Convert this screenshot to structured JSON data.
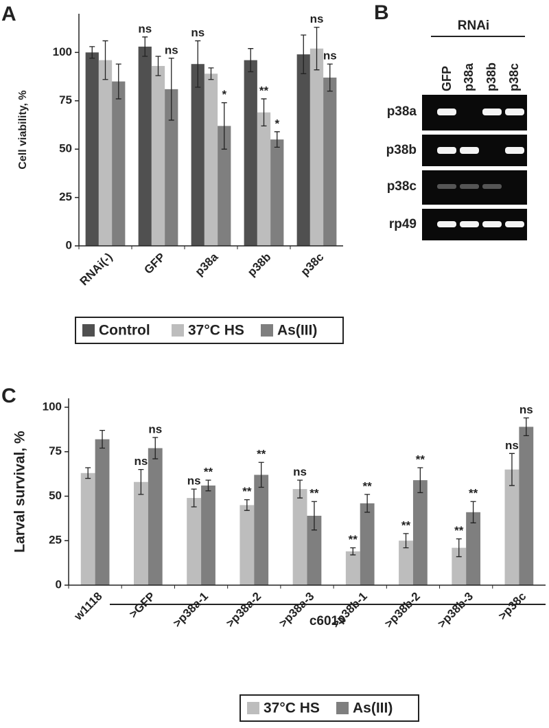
{
  "chart_data": [
    {
      "type": "bar",
      "panel_label": "A",
      "y_label": "Cell viability, %",
      "categories": [
        "RNAi(-)",
        "GFP",
        "p38a",
        "p38b",
        "p38c"
      ],
      "series": [
        {
          "name": "Control",
          "color": "#505050",
          "values": [
            100,
            103,
            94,
            96,
            99
          ],
          "errors": [
            3,
            5,
            12,
            6,
            10
          ],
          "annotations": [
            null,
            "ns",
            "ns",
            null,
            null
          ]
        },
        {
          "name": "37°C HS",
          "color": "#bdbdbd",
          "values": [
            96,
            93,
            89,
            69,
            102
          ],
          "errors": [
            10,
            5,
            3,
            7,
            11
          ],
          "annotations": [
            null,
            null,
            null,
            "**",
            "ns"
          ]
        },
        {
          "name": "As(III)",
          "color": "#7f7f7f",
          "values": [
            85,
            81,
            62,
            55,
            87
          ],
          "errors": [
            9,
            16,
            12,
            4,
            7
          ],
          "annotations": [
            null,
            "ns",
            "*",
            "*",
            "ns"
          ]
        }
      ],
      "ylim": [
        0,
        120
      ],
      "yticks": [
        0,
        25,
        50,
        75,
        100
      ]
    },
    {
      "type": "bar",
      "panel_label": "C",
      "y_label": "Larval survival, %",
      "group_label": "c601>",
      "categories": [
        "w1118",
        ">GFP",
        ">p38a-1",
        ">p38a-2",
        ">p38a-3",
        ">p38b-1",
        ">p38b-2",
        ">p38b-3",
        ">p38c"
      ],
      "series": [
        {
          "name": "37°C HS",
          "color": "#bdbdbd",
          "values": [
            63,
            58,
            49,
            45,
            54,
            19,
            25,
            21,
            65
          ],
          "errors": [
            3,
            7,
            5,
            3,
            5,
            2,
            4,
            5,
            9
          ],
          "annotations": [
            null,
            "ns",
            "ns",
            "**",
            "ns",
            "**",
            "**",
            "**",
            "ns"
          ]
        },
        {
          "name": "As(III)",
          "color": "#7f7f7f",
          "values": [
            82,
            77,
            56,
            62,
            39,
            46,
            59,
            41,
            89
          ],
          "errors": [
            5,
            6,
            3,
            7,
            8,
            5,
            7,
            6,
            5
          ],
          "annotations": [
            null,
            "ns",
            "**",
            "**",
            "**",
            "**",
            "**",
            "**",
            "ns"
          ]
        }
      ],
      "ylim": [
        0,
        105
      ],
      "yticks": [
        0,
        25,
        50,
        75,
        100
      ]
    }
  ],
  "gel": {
    "panel_label": "B",
    "header": "RNAi",
    "lanes": [
      "GFP",
      "p38a",
      "p38b",
      "p38c"
    ],
    "rows": [
      "p38a",
      "p38b",
      "p38c",
      "rp49"
    ]
  }
}
